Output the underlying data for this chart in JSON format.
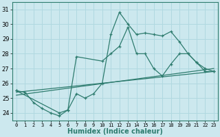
{
  "xlabel": "Humidex (Indice chaleur)",
  "bg_color": "#cce8ee",
  "grid_color": "#b0d8e0",
  "line_color": "#2d7b6e",
  "xlim": [
    -0.5,
    23.5
  ],
  "ylim": [
    23.5,
    31.5
  ],
  "yticks": [
    24,
    25,
    26,
    27,
    28,
    29,
    30,
    31
  ],
  "xticks": [
    0,
    1,
    2,
    3,
    4,
    5,
    6,
    7,
    8,
    9,
    10,
    11,
    12,
    13,
    14,
    15,
    16,
    17,
    18,
    19,
    20,
    21,
    22,
    23
  ],
  "line1_x": [
    0,
    1,
    2,
    3,
    4,
    5,
    6,
    7,
    8,
    9,
    10,
    11,
    12,
    13,
    14,
    15,
    16,
    17,
    18,
    19,
    20,
    21,
    22,
    23
  ],
  "line1_y": [
    25.5,
    25.4,
    24.7,
    24.3,
    24.0,
    23.8,
    24.2,
    25.3,
    25.0,
    25.3,
    26.0,
    29.3,
    30.8,
    30.0,
    29.3,
    29.4,
    29.3,
    29.2,
    29.5,
    28.8,
    28.0,
    27.4,
    26.8,
    26.8
  ],
  "line2_x": [
    0,
    5,
    6,
    7,
    10,
    11,
    12,
    13,
    14,
    15,
    16,
    17,
    18,
    19,
    20,
    21,
    22,
    23
  ],
  "line2_y": [
    25.5,
    24.0,
    24.2,
    27.8,
    27.5,
    28.0,
    28.5,
    29.8,
    28.0,
    28.0,
    27.0,
    26.5,
    27.3,
    28.0,
    28.0,
    27.4,
    27.0,
    26.8
  ],
  "line3_x": [
    0,
    23
  ],
  "line3_y": [
    25.4,
    26.8
  ],
  "line4_x": [
    0,
    23
  ],
  "line4_y": [
    25.2,
    27.0
  ]
}
